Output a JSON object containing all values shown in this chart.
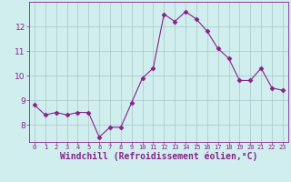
{
  "x": [
    0,
    1,
    2,
    3,
    4,
    5,
    6,
    7,
    8,
    9,
    10,
    11,
    12,
    13,
    14,
    15,
    16,
    17,
    18,
    19,
    20,
    21,
    22,
    23
  ],
  "y": [
    8.8,
    8.4,
    8.5,
    8.4,
    8.5,
    8.5,
    7.5,
    7.9,
    7.9,
    8.9,
    9.9,
    10.3,
    12.5,
    12.2,
    12.6,
    12.3,
    11.8,
    11.1,
    10.7,
    9.8,
    9.8,
    10.3,
    9.5,
    9.4
  ],
  "line_color": "#882288",
  "marker": "D",
  "marker_size": 2.5,
  "bg_color": "#d0eeee",
  "grid_color": "#b0cccc",
  "xlabel": "Windchill (Refroidissement éolien,°C)",
  "ylabel": "",
  "xlim": [
    -0.5,
    23.5
  ],
  "ylim": [
    7.3,
    13.0
  ],
  "yticks": [
    8,
    9,
    10,
    11,
    12
  ],
  "xticks": [
    0,
    1,
    2,
    3,
    4,
    5,
    6,
    7,
    8,
    9,
    10,
    11,
    12,
    13,
    14,
    15,
    16,
    17,
    18,
    19,
    20,
    21,
    22,
    23
  ],
  "tick_color": "#882288",
  "label_color": "#882288",
  "spine_color": "#882288",
  "font_size": 6.5,
  "xlabel_fontsize": 7,
  "xlabel_fontweight": "bold"
}
